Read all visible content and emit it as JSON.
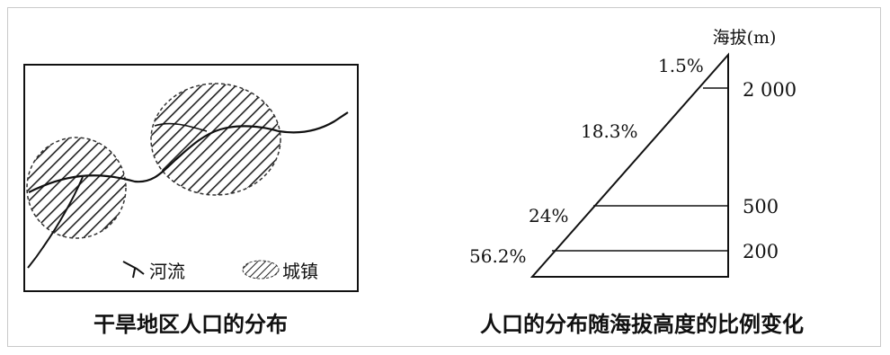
{
  "left_figure": {
    "caption": "干旱地区人口的分布",
    "legend": {
      "river": "河流",
      "town": "城镇"
    }
  },
  "right_figure": {
    "caption": "人口的分布随海拔高度的比例变化",
    "axis_title": "海拔(m)",
    "elevation_ticks": [
      {
        "label": "2 000",
        "value": 2000
      },
      {
        "label": "500",
        "value": 500
      },
      {
        "label": "200",
        "value": 200
      }
    ],
    "bands": [
      {
        "label": "56.2%",
        "range": "0-200",
        "value": 56.2
      },
      {
        "label": "24%",
        "range": "200-500",
        "value": 24
      },
      {
        "label": "18.3%",
        "range": "500-2000",
        "value": 18.3
      },
      {
        "label": "1.5%",
        "range": ">2000",
        "value": 1.5
      }
    ]
  }
}
